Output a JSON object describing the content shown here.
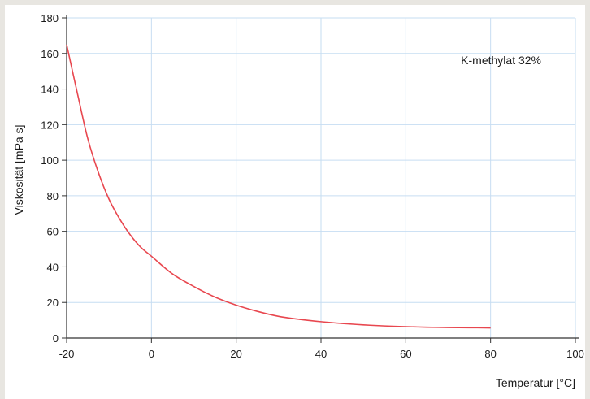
{
  "chart_data": {
    "type": "line",
    "title": "",
    "xlabel": "Temperatur [°C]",
    "ylabel": "Viskosität [mPa s]",
    "xlim": [
      -20,
      100
    ],
    "ylim": [
      0,
      180
    ],
    "x_ticks": [
      -20,
      0,
      20,
      40,
      60,
      80,
      100
    ],
    "y_ticks": [
      0,
      20,
      40,
      60,
      80,
      100,
      120,
      140,
      160,
      180
    ],
    "x_tick_labels": [
      "-20",
      "0",
      "20",
      "40",
      "60",
      "80",
      "100"
    ],
    "y_tick_labels": [
      "0",
      "20",
      "40",
      "60",
      "80",
      "100",
      "120",
      "140",
      "160",
      "180"
    ],
    "grid": true,
    "annotation": "K-methylat 32%",
    "series": [
      {
        "color": "#e8474f",
        "x": [
          -20,
          -17.5,
          -15,
          -12.5,
          -10,
          -7.5,
          -5,
          -2.5,
          0,
          5,
          10,
          15,
          20,
          25,
          30,
          35,
          40,
          45,
          50,
          55,
          60,
          65,
          70,
          75,
          80
        ],
        "y": [
          165,
          138,
          112,
          93,
          78,
          67,
          58,
          51,
          46,
          36,
          29,
          23,
          18.5,
          15,
          12.2,
          10.5,
          9.2,
          8.2,
          7.4,
          6.8,
          6.4,
          6.1,
          5.9,
          5.8,
          5.7
        ]
      }
    ],
    "colors": {
      "grid": "#c6ddf2",
      "axis": "#333333",
      "line": "#e8474f"
    }
  }
}
